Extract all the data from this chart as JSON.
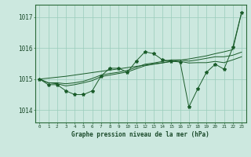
{
  "background_color": "#cce8df",
  "grid_color": "#99ccbb",
  "line_color": "#1a5c2a",
  "title": "Graphe pression niveau de la mer (hPa)",
  "xlim": [
    -0.5,
    23.5
  ],
  "ylim": [
    1013.6,
    1017.4
  ],
  "yticks": [
    1014,
    1015,
    1016,
    1017
  ],
  "xticks": [
    0,
    1,
    2,
    3,
    4,
    5,
    6,
    7,
    8,
    9,
    10,
    11,
    12,
    13,
    14,
    15,
    16,
    17,
    18,
    19,
    20,
    21,
    22,
    23
  ],
  "series_main": [
    1015.0,
    1014.82,
    1014.82,
    1014.62,
    1014.5,
    1014.5,
    1014.62,
    1015.1,
    1015.35,
    1015.35,
    1015.22,
    1015.58,
    1015.88,
    1015.82,
    1015.62,
    1015.58,
    1015.55,
    1014.1,
    1014.68,
    1015.22,
    1015.48,
    1015.32,
    1016.02,
    1017.15
  ],
  "series_smooth1": [
    1015.0,
    1014.88,
    1014.85,
    1014.78,
    1014.82,
    1014.88,
    1014.95,
    1015.08,
    1015.13,
    1015.18,
    1015.23,
    1015.33,
    1015.43,
    1015.48,
    1015.52,
    1015.57,
    1015.57,
    1015.52,
    1015.53,
    1015.53,
    1015.57,
    1015.53,
    1015.62,
    1015.72
  ],
  "series_smooth2": [
    1015.0,
    1014.88,
    1014.88,
    1014.85,
    1014.88,
    1014.93,
    1015.02,
    1015.13,
    1015.18,
    1015.22,
    1015.28,
    1015.38,
    1015.48,
    1015.52,
    1015.57,
    1015.62,
    1015.62,
    1015.58,
    1015.62,
    1015.67,
    1015.72,
    1015.72,
    1015.77,
    1015.87
  ],
  "series_linear": [
    1015.0,
    1015.03,
    1015.06,
    1015.09,
    1015.13,
    1015.17,
    1015.21,
    1015.25,
    1015.29,
    1015.33,
    1015.37,
    1015.41,
    1015.45,
    1015.49,
    1015.53,
    1015.57,
    1015.61,
    1015.65,
    1015.7,
    1015.75,
    1015.82,
    1015.88,
    1015.95,
    1017.15
  ]
}
